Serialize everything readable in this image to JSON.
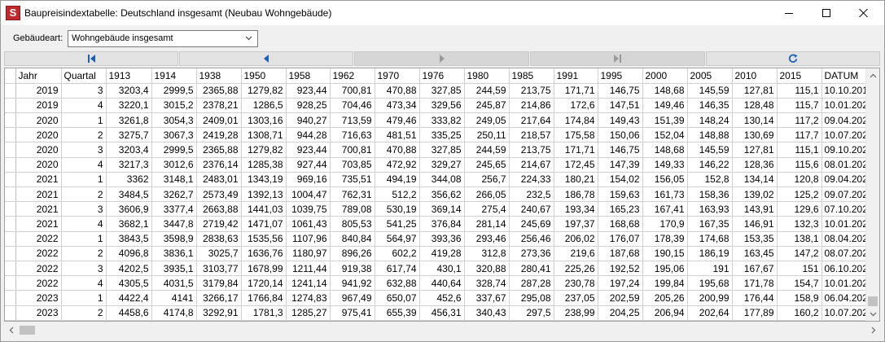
{
  "window": {
    "title": "Baupreisindextabelle: Deutschland insgesamt (Neubau Wohngebäude)",
    "app_icon_letter": "S"
  },
  "filter": {
    "label": "Gebäudeart:",
    "selected": "Wohngebäude insgesamt"
  },
  "nav": {
    "buttons": [
      "first",
      "previous",
      "next",
      "last",
      "refresh"
    ],
    "disabled": [
      "next",
      "last"
    ]
  },
  "grid": {
    "columns": [
      "Jahr",
      "Quartal",
      "1913",
      "1914",
      "1938",
      "1950",
      "1958",
      "1962",
      "1970",
      "1976",
      "1980",
      "1985",
      "1991",
      "1995",
      "2000",
      "2005",
      "2010",
      "2015",
      "DATUM"
    ],
    "current_row": 19,
    "rows": [
      [
        "2019",
        "3",
        "3203,4",
        "2999,5",
        "2365,88",
        "1279,82",
        "923,44",
        "700,81",
        "470,88",
        "327,85",
        "244,59",
        "213,75",
        "171,71",
        "146,75",
        "148,68",
        "145,59",
        "127,81",
        "115,1",
        "10.10.201"
      ],
      [
        "2019",
        "4",
        "3220,1",
        "3015,2",
        "2378,21",
        "1286,5",
        "928,25",
        "704,46",
        "473,34",
        "329,56",
        "245,87",
        "214,86",
        "172,6",
        "147,51",
        "149,46",
        "146,35",
        "128,48",
        "115,7",
        "10.01.202"
      ],
      [
        "2020",
        "1",
        "3261,8",
        "3054,3",
        "2409,01",
        "1303,16",
        "940,27",
        "713,59",
        "479,46",
        "333,82",
        "249,05",
        "217,64",
        "174,84",
        "149,43",
        "151,39",
        "148,24",
        "130,14",
        "117,2",
        "09.04.202"
      ],
      [
        "2020",
        "2",
        "3275,7",
        "3067,3",
        "2419,28",
        "1308,71",
        "944,28",
        "716,63",
        "481,51",
        "335,25",
        "250,11",
        "218,57",
        "175,58",
        "150,06",
        "152,04",
        "148,88",
        "130,69",
        "117,7",
        "10.07.202"
      ],
      [
        "2020",
        "3",
        "3203,4",
        "2999,5",
        "2365,88",
        "1279,82",
        "923,44",
        "700,81",
        "470,88",
        "327,85",
        "244,59",
        "213,75",
        "171,71",
        "146,75",
        "148,68",
        "145,59",
        "127,81",
        "115,1",
        "09.10.202"
      ],
      [
        "2020",
        "4",
        "3217,3",
        "3012,6",
        "2376,14",
        "1285,38",
        "927,44",
        "703,85",
        "472,92",
        "329,27",
        "245,65",
        "214,67",
        "172,45",
        "147,39",
        "149,33",
        "146,22",
        "128,36",
        "115,6",
        "08.01.202"
      ],
      [
        "2021",
        "1",
        "3362",
        "3148,1",
        "2483,01",
        "1343,19",
        "969,16",
        "735,51",
        "494,19",
        "344,08",
        "256,7",
        "224,33",
        "180,21",
        "154,02",
        "156,05",
        "152,8",
        "134,14",
        "120,8",
        "09.04.202"
      ],
      [
        "2021",
        "2",
        "3484,5",
        "3262,7",
        "2573,49",
        "1392,13",
        "1004,47",
        "762,31",
        "512,2",
        "356,62",
        "266,05",
        "232,5",
        "186,78",
        "159,63",
        "161,73",
        "158,36",
        "139,02",
        "125,2",
        "09.07.202"
      ],
      [
        "2021",
        "3",
        "3606,9",
        "3377,4",
        "2663,88",
        "1441,03",
        "1039,75",
        "789,08",
        "530,19",
        "369,14",
        "275,4",
        "240,67",
        "193,34",
        "165,23",
        "167,41",
        "163,93",
        "143,91",
        "129,6",
        "07.10.202"
      ],
      [
        "2021",
        "4",
        "3682,1",
        "3447,8",
        "2719,42",
        "1471,07",
        "1061,43",
        "805,53",
        "541,25",
        "376,84",
        "281,14",
        "245,69",
        "197,37",
        "168,68",
        "170,9",
        "167,35",
        "146,91",
        "132,3",
        "10.01.202"
      ],
      [
        "2022",
        "1",
        "3843,5",
        "3598,9",
        "2838,63",
        "1535,56",
        "1107,96",
        "840,84",
        "564,97",
        "393,36",
        "293,46",
        "256,46",
        "206,02",
        "176,07",
        "178,39",
        "174,68",
        "153,35",
        "138,1",
        "08.04.202"
      ],
      [
        "2022",
        "2",
        "4096,8",
        "3836,1",
        "3025,7",
        "1636,76",
        "1180,97",
        "896,26",
        "602,2",
        "419,28",
        "312,8",
        "273,36",
        "219,6",
        "187,68",
        "190,15",
        "186,19",
        "163,45",
        "147,2",
        "08.07.202"
      ],
      [
        "2022",
        "3",
        "4202,5",
        "3935,1",
        "3103,77",
        "1678,99",
        "1211,44",
        "919,38",
        "617,74",
        "430,1",
        "320,88",
        "280,41",
        "225,26",
        "192,52",
        "195,06",
        "191",
        "167,67",
        "151",
        "06.10.202"
      ],
      [
        "2022",
        "4",
        "4305,5",
        "4031,5",
        "3179,84",
        "1720,14",
        "1241,14",
        "941,92",
        "632,88",
        "440,64",
        "328,74",
        "287,28",
        "230,78",
        "197,24",
        "199,84",
        "195,68",
        "171,78",
        "154,7",
        "10.01.202"
      ],
      [
        "2023",
        "1",
        "4422,4",
        "4141",
        "3266,17",
        "1766,84",
        "1274,83",
        "967,49",
        "650,07",
        "452,6",
        "337,67",
        "295,08",
        "237,05",
        "202,59",
        "205,26",
        "200,99",
        "176,44",
        "158,9",
        "06.04.202"
      ],
      [
        "2023",
        "2",
        "4458,6",
        "4174,8",
        "3292,91",
        "1781,3",
        "1285,27",
        "975,41",
        "655,39",
        "456,31",
        "340,43",
        "297,5",
        "238,99",
        "204,25",
        "206,94",
        "202,64",
        "177,89",
        "160,2",
        "10.07.202"
      ]
    ]
  }
}
